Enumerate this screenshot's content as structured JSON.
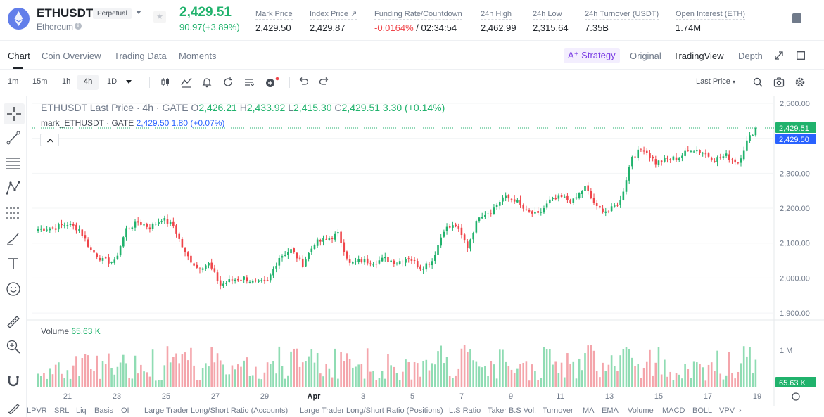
{
  "header": {
    "symbol": "ETHUSDT",
    "contract_type": "Perpetual",
    "asset_name": "Ethereum",
    "last_price": "2,429.51",
    "change": "90.97(+3.89%)",
    "stats": [
      {
        "label": "Mark Price",
        "value": "2,429.50"
      },
      {
        "label": "Index Price ↗",
        "value": "2,429.87"
      },
      {
        "label": "Funding Rate/Countdown",
        "value_neg": "-0.0164%",
        "value": " / 02:34:54"
      },
      {
        "label": "24h High",
        "value": "2,462.99"
      },
      {
        "label": "24h Low",
        "value": "2,315.64"
      },
      {
        "label": "24h Turnover (USDT)",
        "value": "7.35B"
      },
      {
        "label": "Open Interest (ETH)",
        "value": "1.74M"
      }
    ]
  },
  "tabs": {
    "items": [
      "Chart",
      "Coin Overview",
      "Trading Data",
      "Moments"
    ],
    "strategy": "Strategy",
    "views": [
      "Original",
      "TradingView",
      "Depth"
    ]
  },
  "toolbar": {
    "intervals": [
      "1m",
      "15m",
      "1h",
      "4h",
      "1D"
    ],
    "active_interval": "4h",
    "price_source": "Last Price"
  },
  "legend": {
    "title": "ETHUSDT Last Price · 4h · GATE",
    "o_label": "O",
    "o": "2,426.21",
    "h_label": "H",
    "h": "2,433.92",
    "l_label": "L",
    "l": "2,415.30",
    "c_label": "C",
    "c": "2,429.51",
    "change": "3.30 (+0.14%)",
    "mark_title": "mark_ETHUSDT · GATE",
    "mark_price": "2,429.50",
    "mark_change": "1.80 (+0.07%)"
  },
  "volume_legend": {
    "label": "Volume",
    "value": "65.63 K"
  },
  "colors": {
    "up": "#20b26c",
    "down": "#ef454a",
    "up_light": "#8fdcb3",
    "down_light": "#f4a5ab",
    "mark": "#2962ff"
  },
  "chart_data": {
    "type": "candlestick",
    "title": "ETHUSDT Last Price · 4h · GATE",
    "price_axis_ticks": [
      "2,500.00",
      "2,400.00",
      "2,300.00",
      "2,200.00",
      "2,100.00",
      "2,000.00",
      "1,900.00"
    ],
    "price_range": [
      1880,
      2520
    ],
    "volume_axis_ticks": [
      "1 M"
    ],
    "date_ticks": [
      "21",
      "23",
      "25",
      "27",
      "29",
      "Apr",
      "3",
      "5",
      "7",
      "9",
      "11",
      "13",
      "15",
      "17",
      "19"
    ],
    "last_price_label": "2,429.51",
    "mark_price_label": "2,429.50",
    "last_volume_label": "65.63 K",
    "anchors": [
      [
        0,
        2140
      ],
      [
        6,
        2145
      ],
      [
        10,
        2155
      ],
      [
        14,
        2140
      ],
      [
        18,
        2080
      ],
      [
        22,
        2050
      ],
      [
        26,
        2045
      ],
      [
        30,
        2140
      ],
      [
        34,
        2160
      ],
      [
        38,
        2145
      ],
      [
        42,
        2170
      ],
      [
        46,
        2150
      ],
      [
        50,
        2070
      ],
      [
        54,
        2030
      ],
      [
        58,
        2040
      ],
      [
        62,
        1980
      ],
      [
        66,
        1995
      ],
      [
        70,
        2000
      ],
      [
        74,
        1985
      ],
      [
        78,
        1990
      ],
      [
        82,
        2060
      ],
      [
        86,
        2080
      ],
      [
        90,
        2040
      ],
      [
        94,
        2100
      ],
      [
        98,
        2110
      ],
      [
        102,
        2125
      ],
      [
        106,
        2040
      ],
      [
        110,
        2050
      ],
      [
        114,
        2045
      ],
      [
        118,
        2055
      ],
      [
        122,
        2045
      ],
      [
        126,
        2060
      ],
      [
        130,
        2030
      ],
      [
        134,
        2050
      ],
      [
        138,
        2140
      ],
      [
        142,
        2150
      ],
      [
        146,
        2090
      ],
      [
        150,
        2180
      ],
      [
        154,
        2190
      ],
      [
        158,
        2230
      ],
      [
        162,
        2225
      ],
      [
        166,
        2190
      ],
      [
        170,
        2180
      ],
      [
        174,
        2220
      ],
      [
        178,
        2230
      ],
      [
        182,
        2220
      ],
      [
        186,
        2260
      ],
      [
        190,
        2200
      ],
      [
        194,
        2190
      ],
      [
        198,
        2220
      ],
      [
        202,
        2350
      ],
      [
        206,
        2370
      ],
      [
        210,
        2330
      ],
      [
        214,
        2340
      ],
      [
        218,
        2345
      ],
      [
        222,
        2370
      ],
      [
        226,
        2360
      ],
      [
        230,
        2340
      ],
      [
        234,
        2350
      ],
      [
        238,
        2330
      ],
      [
        241,
        2390
      ],
      [
        244,
        2429.51
      ]
    ]
  },
  "indicators": [
    "LPVR",
    "SRL",
    "Liq",
    "Basis",
    "OI",
    "Large Trader Long/Short Ratio (Accounts)",
    "Large Trader Long/Short Ratio (Positions)",
    "L.S Ratio",
    "Taker B.S Vol.",
    "Turnover",
    "MA",
    "EMA",
    "Volume",
    "MACD",
    "BOLL",
    "VPV"
  ]
}
